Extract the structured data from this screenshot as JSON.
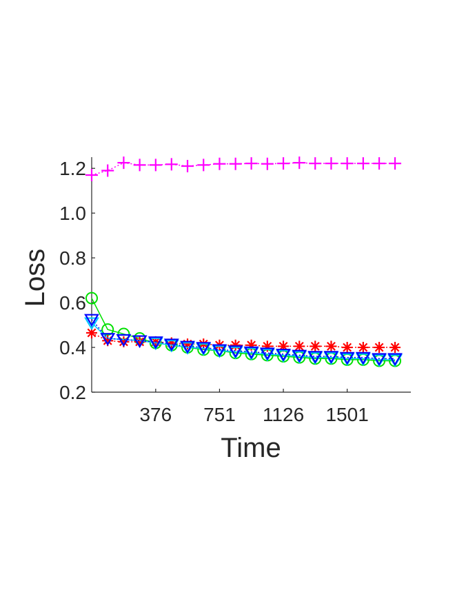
{
  "chart_data": {
    "type": "line",
    "xlabel": "Time",
    "ylabel": "Loss",
    "xlim": [
      0,
      1875
    ],
    "ylim": [
      0.2,
      1.25
    ],
    "xticks": [
      376,
      751,
      1126,
      1501
    ],
    "xtick_labels": [
      "376",
      "751",
      "1126",
      "1501"
    ],
    "yticks": [
      0.2,
      0.4,
      0.6,
      0.8,
      1.0,
      1.2
    ],
    "ytick_labels": [
      "0.2",
      "0.4",
      "0.6",
      "0.8",
      "1.0",
      "1.2"
    ],
    "x": [
      0,
      94,
      188,
      282,
      376,
      469,
      563,
      657,
      751,
      845,
      938,
      1032,
      1126,
      1220,
      1313,
      1407,
      1501,
      1595,
      1689,
      1782
    ],
    "series": [
      {
        "color": "#ff00ff",
        "marker": "plus",
        "line": "dotted",
        "values": [
          1.17,
          1.19,
          1.225,
          1.215,
          1.215,
          1.218,
          1.21,
          1.215,
          1.22,
          1.22,
          1.222,
          1.22,
          1.222,
          1.225,
          1.222,
          1.222,
          1.222,
          1.222,
          1.222,
          1.222
        ]
      },
      {
        "color": "#00e000",
        "marker": "circle",
        "line": "solid",
        "values": [
          0.62,
          0.48,
          0.46,
          0.44,
          0.42,
          0.41,
          0.4,
          0.39,
          0.385,
          0.375,
          0.37,
          0.365,
          0.36,
          0.355,
          0.35,
          0.35,
          0.345,
          0.345,
          0.34,
          0.34
        ]
      },
      {
        "color": "#ff0000",
        "marker": "asterisk",
        "line": "dotted",
        "values": [
          0.465,
          0.43,
          0.425,
          0.425,
          0.425,
          0.42,
          0.415,
          0.415,
          0.41,
          0.41,
          0.41,
          0.405,
          0.405,
          0.405,
          0.405,
          0.405,
          0.4,
          0.4,
          0.4,
          0.4
        ]
      },
      {
        "color": "#00c8ff",
        "marker": "triangle-down",
        "line": "solid",
        "values": [
          0.51,
          0.44,
          0.435,
          0.43,
          0.42,
          0.41,
          0.4,
          0.395,
          0.385,
          0.38,
          0.375,
          0.37,
          0.365,
          0.36,
          0.355,
          0.355,
          0.35,
          0.35,
          0.345,
          0.345
        ]
      },
      {
        "color": "#0000ff",
        "marker": "triangle-down",
        "line": "dotted",
        "values": [
          0.525,
          0.44,
          0.435,
          0.43,
          0.425,
          0.415,
          0.405,
          0.4,
          0.39,
          0.385,
          0.38,
          0.375,
          0.37,
          0.365,
          0.36,
          0.36,
          0.355,
          0.355,
          0.35,
          0.35
        ]
      }
    ]
  }
}
